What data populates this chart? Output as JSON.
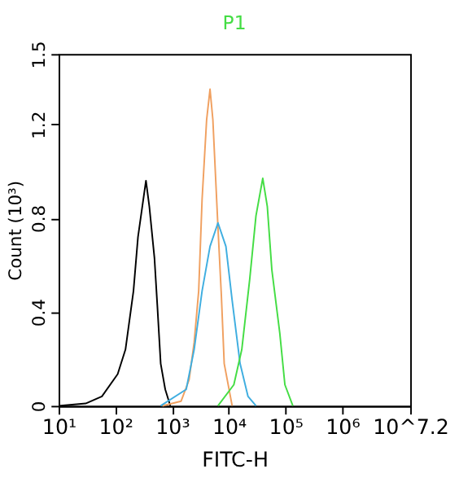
{
  "chart_data": {
    "type": "line",
    "title": "P1",
    "xlabel": "FITC-H",
    "ylabel": "Count (10³)",
    "log": "x",
    "grid": false,
    "legend": false,
    "marker": "none",
    "line_style": "solid",
    "xlim": [
      10,
      15848931.9
    ],
    "xticks": [
      {
        "value": 10,
        "label": "10¹"
      },
      {
        "value": 100,
        "label": "10²"
      },
      {
        "value": 1000,
        "label": "10³"
      },
      {
        "value": 10000,
        "label": "10⁴"
      },
      {
        "value": 100000,
        "label": "10⁵"
      },
      {
        "value": 1000000,
        "label": "10⁶"
      },
      {
        "value": 15848931.9,
        "label": "10^7.2"
      }
    ],
    "ylim": [
      0,
      1.5
    ],
    "yticks": [
      0,
      0.4,
      0.8,
      1.2,
      1.5
    ],
    "series": [
      {
        "type": "line",
        "color": "#000000",
        "x": [
          10,
          30,
          58,
          110,
          151,
          209,
          251,
          347,
          398,
          490,
          550,
          631,
          759,
          933
        ],
        "values": [
          0,
          0.01,
          0.04,
          0.135,
          0.24,
          0.49,
          0.72,
          0.96,
          0.85,
          0.63,
          0.43,
          0.18,
          0.07,
          0
        ]
      },
      {
        "type": "line",
        "color": "#f0a060",
        "x": [
          676,
          1445,
          1995,
          2455,
          2951,
          3388,
          4074,
          4677,
          5248,
          6457,
          7413,
          8318,
          11482
        ],
        "values": [
          0,
          0.02,
          0.11,
          0.27,
          0.49,
          0.88,
          1.22,
          1.35,
          1.22,
          0.76,
          0.47,
          0.18,
          0
        ]
      },
      {
        "type": "line",
        "color": "#3faee0",
        "x": [
          631,
          1778,
          2455,
          3388,
          4677,
          6457,
          8913,
          11482,
          15849,
          21878,
          30200
        ],
        "values": [
          0,
          0.07,
          0.24,
          0.49,
          0.68,
          0.78,
          0.68,
          0.45,
          0.18,
          0.04,
          0
        ]
      },
      {
        "type": "line",
        "color": "#44dd44",
        "x": [
          6457,
          12303,
          16982,
          23442,
          30200,
          39811,
          47863,
          57544,
          79433,
          97724,
          134896
        ],
        "values": [
          0,
          0.09,
          0.24,
          0.54,
          0.81,
          0.97,
          0.85,
          0.58,
          0.31,
          0.09,
          0
        ]
      }
    ]
  }
}
